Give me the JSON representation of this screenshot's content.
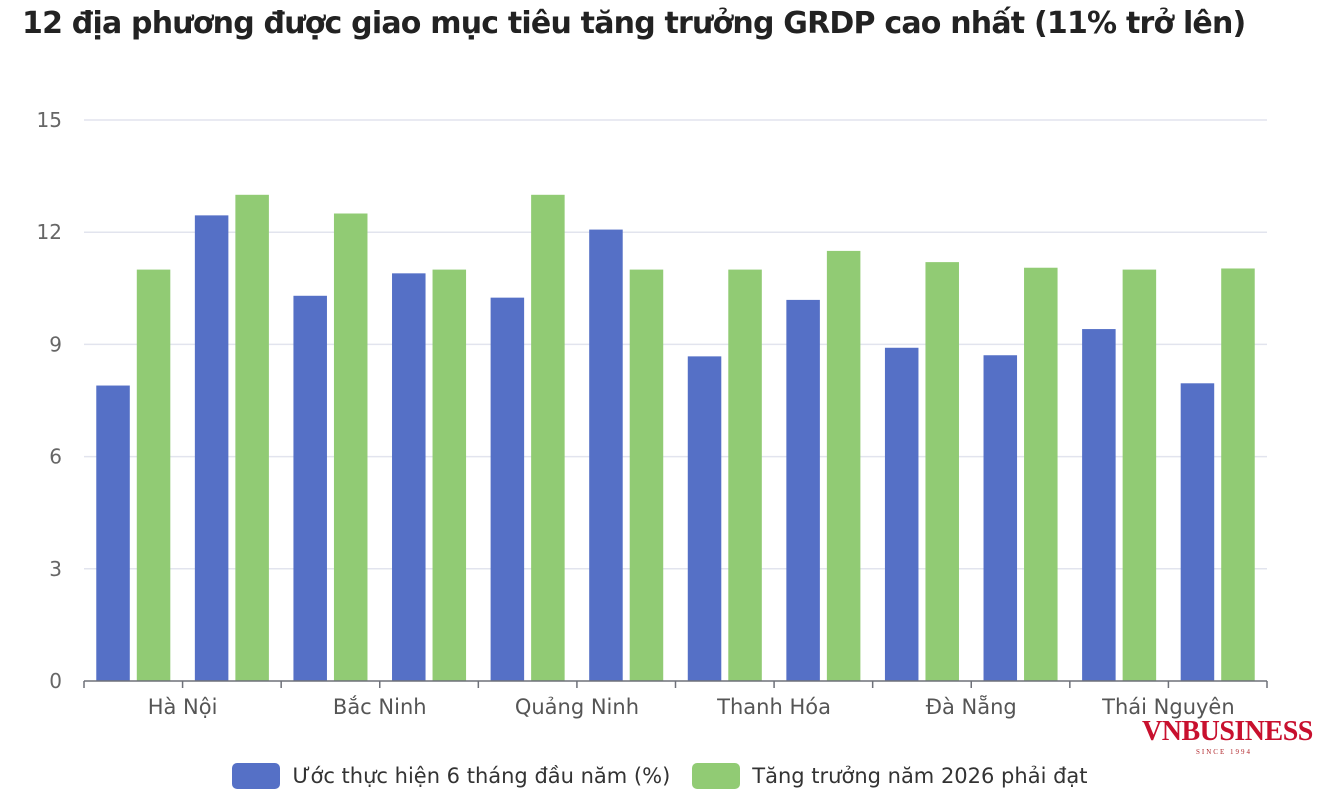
{
  "colors": {
    "series1": "#5570c6",
    "series2": "#91cb74",
    "grid": "#e2e4ee",
    "axis": "#6e7079",
    "brand": "#c8102e"
  },
  "chart_data": {
    "type": "bar",
    "title": "12 địa phương được giao mục tiêu tăng trưởng GRDP cao nhất (11% trở lên)",
    "categories": [
      "Hà Nội",
      "",
      "Bắc Ninh",
      "",
      "Quảng Ninh",
      "",
      "Thanh Hóa",
      "",
      "Đà Nẵng",
      "",
      "Thái Nguyên",
      ""
    ],
    "series": [
      {
        "name": "Ước thực hiện 6 tháng đầu năm (%)",
        "values": [
          7.9,
          12.45,
          10.3,
          10.9,
          10.25,
          12.07,
          8.68,
          10.19,
          8.91,
          8.71,
          9.41,
          7.96
        ]
      },
      {
        "name": "Tăng trưởng năm 2026 phải đạt",
        "values": [
          11,
          13,
          12.5,
          11,
          13,
          11,
          11,
          11.5,
          11.2,
          11.05,
          11,
          11.03
        ]
      }
    ],
    "yticks": [
      0,
      3,
      6,
      9,
      12,
      15
    ],
    "ylim": [
      0,
      15
    ],
    "grid": true,
    "legend": "bottom"
  },
  "watermark": {
    "main": "VNBUSINESS",
    "sub": "SINCE 1994"
  }
}
